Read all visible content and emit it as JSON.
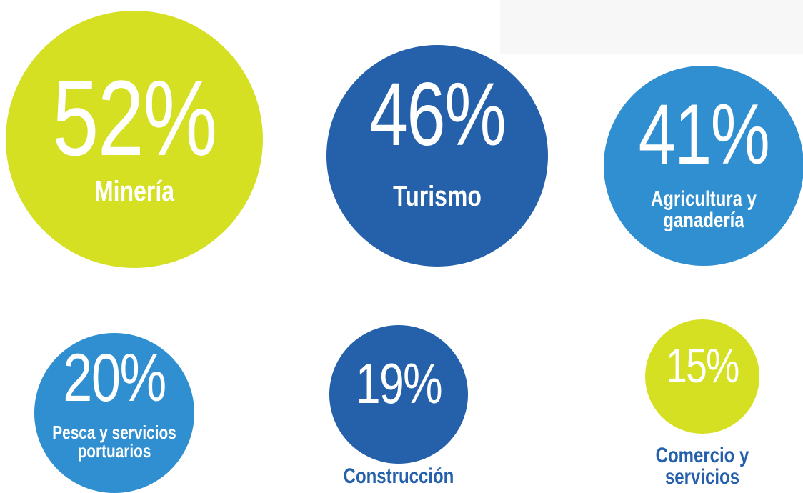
{
  "chart_data": {
    "type": "bubble",
    "categories": [
      "Minería",
      "Turismo",
      "Agricultura y ganadería",
      "Pesca y servicios portuarios",
      "Construcción",
      "Comercio y servicios"
    ],
    "values": [
      52,
      46,
      41,
      20,
      19,
      15
    ],
    "value_labels": [
      "52%",
      "46%",
      "41%",
      "20%",
      "19%",
      "15%"
    ],
    "colors": [
      "#d4e021",
      "#2560ab",
      "#2f8fd0",
      "#2f8fd0",
      "#2560ab",
      "#d4e021"
    ]
  }
}
